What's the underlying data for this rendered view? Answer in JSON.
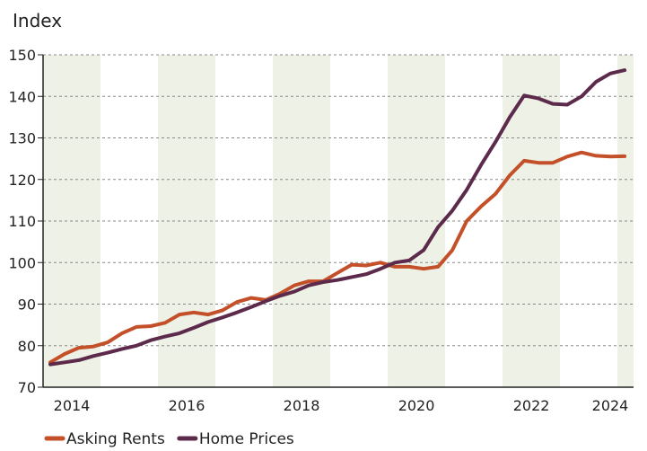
{
  "chart_data": {
    "type": "line",
    "y_axis_label": "Index",
    "x": [
      2014.125,
      2014.375,
      2014.625,
      2014.875,
      2015.125,
      2015.375,
      2015.625,
      2015.875,
      2016.125,
      2016.375,
      2016.625,
      2016.875,
      2017.125,
      2017.375,
      2017.625,
      2017.875,
      2018.125,
      2018.375,
      2018.625,
      2018.875,
      2019.125,
      2019.375,
      2019.625,
      2019.875,
      2020.125,
      2020.375,
      2020.625,
      2020.875,
      2021.125,
      2021.375,
      2021.625,
      2021.875,
      2022.125,
      2022.375,
      2022.625,
      2022.875,
      2023.125,
      2023.375,
      2023.625,
      2023.875,
      2024.125
    ],
    "series": [
      {
        "name": "Asking Rents",
        "color": "#c4502a",
        "values": [
          76,
          78,
          79.5,
          79.8,
          80.8,
          83,
          84.5,
          84.7,
          85.5,
          87.5,
          88,
          87.5,
          88.5,
          90.5,
          91.5,
          91,
          92.5,
          94.5,
          95.5,
          95.5,
          97.5,
          99.5,
          99.3,
          100,
          99,
          99,
          98.5,
          99,
          103,
          110,
          113.5,
          116.5,
          121,
          124.5,
          124,
          124,
          125.5,
          126.5,
          125.7,
          125.5,
          125.6
        ]
      },
      {
        "name": "Home Prices",
        "color": "#5c2a4a",
        "values": [
          75.5,
          76,
          76.5,
          77.5,
          78.3,
          79.2,
          80,
          81.3,
          82.2,
          83,
          84.3,
          85.7,
          86.8,
          88,
          89.3,
          90.7,
          92,
          93,
          94.5,
          95.3,
          95.8,
          96.5,
          97.2,
          98.5,
          100,
          100.5,
          103,
          108.5,
          112.5,
          117.5,
          123.5,
          129,
          135,
          140.2,
          139.5,
          138.2,
          138,
          140,
          143.5,
          145.5,
          146.3
        ]
      }
    ],
    "xlim": [
      2014,
      2024.28
    ],
    "xticks": [
      {
        "value": 2014.5,
        "label": "2014"
      },
      {
        "value": 2016.5,
        "label": "2016"
      },
      {
        "value": 2018.5,
        "label": "2018"
      },
      {
        "value": 2020.5,
        "label": "2020"
      },
      {
        "value": 2022.5,
        "label": "2022"
      },
      {
        "value": 2024.5,
        "label": "2024"
      }
    ],
    "ylim": [
      70,
      150
    ],
    "yticks": [
      70,
      80,
      90,
      100,
      110,
      120,
      130,
      140,
      150
    ],
    "grid": true,
    "legend": "bottom"
  }
}
